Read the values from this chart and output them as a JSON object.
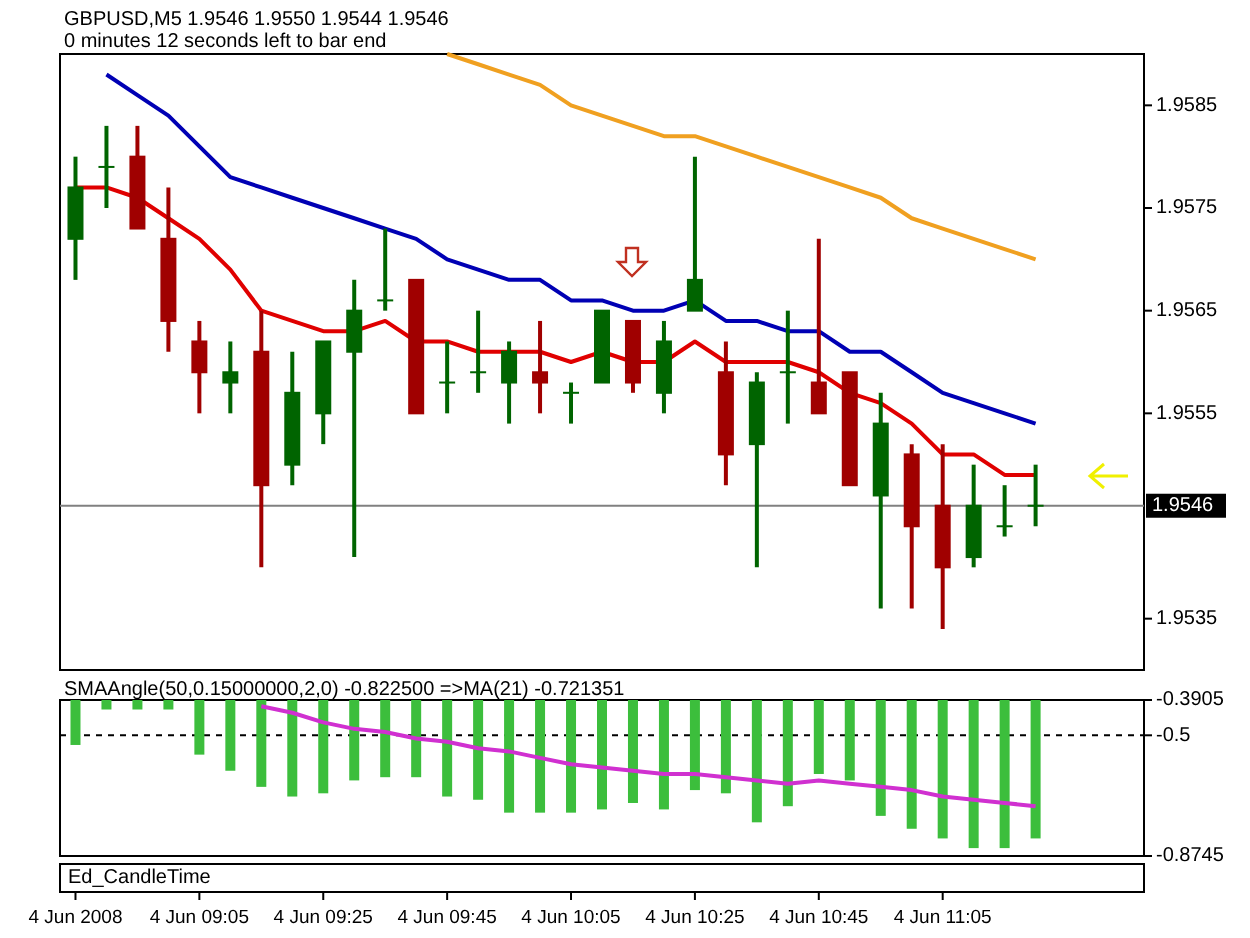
{
  "chart_data": [
    {
      "type": "candlestick",
      "title": "GBPUSD,M5  1.9546 1.9550 1.9544 1.9546",
      "subtitle": "0 minutes 12 seconds left to bar end",
      "categories": [
        null,
        null,
        null,
        null,
        null,
        null,
        null,
        null,
        null,
        null,
        null,
        null,
        null,
        null,
        null,
        null,
        null,
        null,
        null,
        null,
        null,
        null,
        null,
        null,
        null,
        null,
        null,
        null,
        null,
        null,
        null,
        null
      ],
      "ohlc": [
        [
          1.9572,
          1.958,
          1.9568,
          1.9577
        ],
        [
          1.9579,
          1.9583,
          1.9575,
          1.9579
        ],
        [
          1.958,
          1.9583,
          1.9573,
          1.9573
        ],
        [
          1.9572,
          1.9577,
          1.9561,
          1.9564
        ],
        [
          1.9562,
          1.9564,
          1.9555,
          1.9559
        ],
        [
          1.9558,
          1.9562,
          1.9555,
          1.9559
        ],
        [
          1.9561,
          1.9565,
          1.954,
          1.9548
        ],
        [
          1.955,
          1.9561,
          1.9548,
          1.9557
        ],
        [
          1.9555,
          1.9562,
          1.9552,
          1.9562
        ],
        [
          1.9561,
          1.9568,
          1.9541,
          1.9565
        ],
        [
          1.9566,
          1.9573,
          1.9565,
          1.9566
        ],
        [
          1.9568,
          1.9568,
          1.9555,
          1.9555
        ],
        [
          1.9558,
          1.9562,
          1.9555,
          1.9558
        ],
        [
          1.9559,
          1.9565,
          1.9557,
          1.9559
        ],
        [
          1.9558,
          1.9562,
          1.9554,
          1.9561
        ],
        [
          1.9559,
          1.9564,
          1.9555,
          1.9558
        ],
        [
          1.9557,
          1.9558,
          1.9554,
          1.9557
        ],
        [
          1.9558,
          1.9565,
          1.9558,
          1.9565
        ],
        [
          1.9564,
          1.9564,
          1.9557,
          1.9558
        ],
        [
          1.9557,
          1.9564,
          1.9555,
          1.9562
        ],
        [
          1.9565,
          1.958,
          1.9565,
          1.9568
        ],
        [
          1.9559,
          1.9562,
          1.9548,
          1.9551
        ],
        [
          1.9552,
          1.9559,
          1.954,
          1.9558
        ],
        [
          1.9559,
          1.9565,
          1.9554,
          1.9559
        ],
        [
          1.9558,
          1.9572,
          1.9555,
          1.9555
        ],
        [
          1.9559,
          1.9559,
          1.9548,
          1.9548
        ],
        [
          1.9547,
          1.9557,
          1.9536,
          1.9554
        ],
        [
          1.9551,
          1.9552,
          1.9536,
          1.9544
        ],
        [
          1.9546,
          1.9552,
          1.9534,
          1.954
        ],
        [
          1.9541,
          1.955,
          1.954,
          1.9546
        ],
        [
          1.9544,
          1.9548,
          1.9543,
          1.9544
        ],
        [
          1.9546,
          1.955,
          1.9544,
          1.9546
        ]
      ],
      "colors": [
        "#006400",
        "#006400",
        "#a00000",
        "#a00000",
        "#a00000",
        "#006400",
        "#a00000",
        "#006400",
        "#006400",
        "#006400",
        "#006400",
        "#a00000",
        "#006400",
        "#006400",
        "#006400",
        "#a00000",
        "#006400",
        "#006400",
        "#a00000",
        "#006400",
        "#006400",
        "#a00000",
        "#006400",
        "#006400",
        "#a00000",
        "#a00000",
        "#006400",
        "#a00000",
        "#a00000",
        "#006400",
        "#006400",
        "#006400"
      ],
      "series": [
        {
          "type": "line",
          "color": "#e00000",
          "values": [
            1.9577,
            1.9577,
            1.9576,
            1.9574,
            1.9572,
            1.9569,
            1.9565,
            1.9564,
            1.9563,
            1.9563,
            1.9564,
            1.9562,
            1.9562,
            1.9561,
            1.9561,
            1.9561,
            1.956,
            1.9561,
            1.956,
            1.956,
            1.9562,
            1.956,
            1.956,
            1.956,
            1.9559,
            1.9557,
            1.9556,
            1.9554,
            1.9551,
            1.9551,
            1.9549,
            1.9549
          ]
        },
        {
          "type": "line",
          "color": "#0000b4",
          "values": [
            null,
            1.9588,
            1.9586,
            1.9584,
            1.9581,
            1.9578,
            1.9577,
            1.9576,
            1.9575,
            1.9574,
            1.9573,
            1.9572,
            1.957,
            1.9569,
            1.9568,
            1.9568,
            1.9566,
            1.9566,
            1.9565,
            1.9565,
            1.9566,
            1.9564,
            1.9564,
            1.9563,
            1.9563,
            1.9561,
            1.9561,
            1.9559,
            1.9557,
            1.9556,
            1.9555,
            1.9554
          ]
        },
        {
          "type": "line",
          "color": "#f0a020",
          "values": [
            null,
            null,
            null,
            null,
            null,
            null,
            null,
            null,
            null,
            null,
            null,
            null,
            1.959,
            1.9589,
            1.9588,
            1.9587,
            1.9585,
            1.9584,
            1.9583,
            1.9582,
            1.9582,
            1.9581,
            1.958,
            1.9579,
            1.9578,
            1.9577,
            1.9576,
            1.9574,
            1.9573,
            1.9572,
            1.9571,
            1.957
          ]
        }
      ],
      "ylim": [
        1.953,
        1.959
      ],
      "yticks": [
        1.9585,
        1.9575,
        1.9565,
        1.9555,
        1.9535
      ],
      "ref_lines": [
        {
          "axis": "y",
          "value": 1.9546,
          "label": "1.9546",
          "color": "#808080"
        }
      ],
      "tick_labels": "y"
    },
    {
      "type": "bar",
      "title": "SMAAngle(50,0.15000000,2,0) -0.822500  =>MA(21) -0.721351",
      "categories": [
        "4 Jun 2008",
        null,
        null,
        null,
        "4 Jun 09:05",
        null,
        null,
        null,
        "4 Jun 09:25",
        null,
        null,
        null,
        "4 Jun 09:45",
        null,
        null,
        null,
        "4 Jun 10:05",
        null,
        null,
        null,
        "4 Jun 10:25",
        null,
        null,
        null,
        "4 Jun 10:45",
        null,
        null,
        null,
        "4 Jun 11:05",
        null,
        null,
        null
      ],
      "series": [
        {
          "type": "bar",
          "color": "#3cbe3c",
          "values": [
            -0.53,
            -0.42,
            -0.42,
            -0.42,
            -0.56,
            -0.61,
            -0.66,
            -0.69,
            -0.68,
            -0.64,
            -0.63,
            -0.63,
            -0.69,
            -0.7,
            -0.74,
            -0.74,
            -0.74,
            -0.73,
            -0.71,
            -0.73,
            -0.67,
            -0.68,
            -0.77,
            -0.72,
            -0.62,
            -0.64,
            -0.75,
            -0.79,
            -0.82,
            -0.85,
            -0.85,
            -0.82
          ]
        },
        {
          "type": "line",
          "color": "#d030d0",
          "values": [
            null,
            null,
            null,
            null,
            null,
            null,
            -0.41,
            -0.43,
            -0.46,
            -0.48,
            -0.49,
            -0.51,
            -0.52,
            -0.54,
            -0.55,
            -0.57,
            -0.59,
            -0.6,
            -0.61,
            -0.62,
            -0.62,
            -0.63,
            -0.64,
            -0.65,
            -0.64,
            -0.65,
            -0.66,
            -0.67,
            -0.69,
            -0.7,
            -0.71,
            -0.72
          ]
        }
      ],
      "ylim": [
        -0.8745,
        -0.3905
      ],
      "yticks": [
        -0.3905,
        -0.5,
        -0.8745
      ],
      "ref_lines": [
        {
          "axis": "y",
          "value": -0.5,
          "color": "#000000",
          "line_style": "dashed"
        }
      ],
      "annotations": [
        "Ed_CandleTime"
      ]
    }
  ]
}
